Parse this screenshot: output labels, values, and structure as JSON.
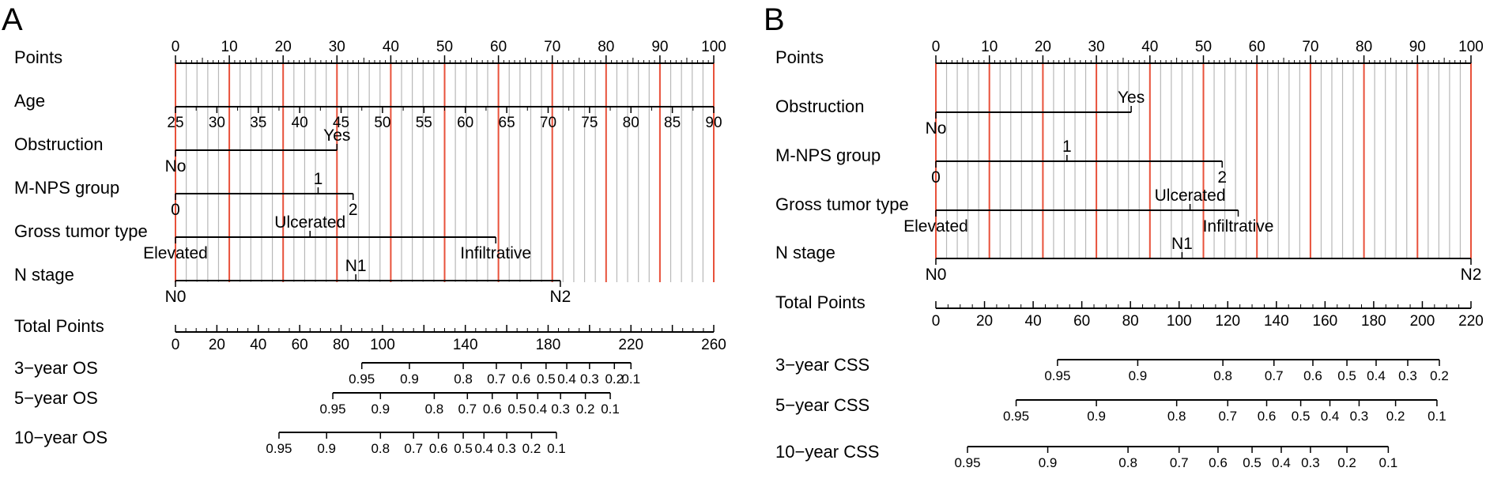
{
  "panels": [
    {
      "letter": "A",
      "rows": [
        {
          "label": "Points",
          "kind": "points"
        },
        {
          "label": "Age",
          "kind": "age",
          "ticks": [
            "25",
            "30",
            "35",
            "40",
            "45",
            "50",
            "55",
            "60",
            "65",
            "70",
            "75",
            "80",
            "85",
            "90"
          ],
          "points_range": [
            0,
            100
          ]
        },
        {
          "label": "Obstruction",
          "kind": "cat",
          "levels": [
            {
              "text": "No",
              "points": 0,
              "side": "below"
            },
            {
              "text": "Yes",
              "points": 30,
              "side": "above"
            }
          ]
        },
        {
          "label": "M-NPS group",
          "kind": "cat",
          "levels": [
            {
              "text": "0",
              "points": 0,
              "side": "below"
            },
            {
              "text": "1",
              "points": 26.5,
              "side": "above"
            },
            {
              "text": "2",
              "points": 33,
              "side": "below"
            }
          ]
        },
        {
          "label": "Gross tumor type",
          "kind": "cat",
          "levels": [
            {
              "text": "Elevated",
              "points": 0,
              "side": "below"
            },
            {
              "text": "Ulcerated",
              "points": 25,
              "side": "above"
            },
            {
              "text": "Infiltrative",
              "points": 59.5,
              "side": "below"
            }
          ]
        },
        {
          "label": "N stage",
          "kind": "cat",
          "levels": [
            {
              "text": "N0",
              "points": 0,
              "side": "below"
            },
            {
              "text": "N1",
              "points": 33.5,
              "side": "above"
            },
            {
              "text": "N2",
              "points": 71.5,
              "side": "below"
            }
          ]
        },
        {
          "label": "Total Points",
          "kind": "total",
          "max": 260,
          "labels": [
            "0",
            "20",
            "40",
            "60",
            "80",
            "100",
            "140",
            "180",
            "220",
            "260"
          ]
        },
        {
          "label": "3−year OS",
          "kind": "prob",
          "ticks": [
            {
              "t": "0.95",
              "v": 0.95,
              "tp": 90
            },
            {
              "t": "0.9",
              "v": 0.9,
              "tp": 113
            },
            {
              "t": "0.8",
              "v": 0.8,
              "tp": 139
            },
            {
              "t": "0.7",
              "v": 0.7,
              "tp": 155
            },
            {
              "t": "0.6",
              "v": 0.6,
              "tp": 167
            },
            {
              "t": "0.5",
              "v": 0.5,
              "tp": 179
            },
            {
              "t": "0.4",
              "v": 0.4,
              "tp": 189
            },
            {
              "t": "0.3",
              "v": 0.3,
              "tp": 200
            },
            {
              "t": "0.2",
              "v": 0.2,
              "tp": 212
            },
            {
              "t": "0.1",
              "v": 0.1,
              "tp": 220
            }
          ]
        },
        {
          "label": "5−year OS",
          "kind": "prob",
          "ticks": [
            {
              "t": "0.95",
              "v": 0.95,
              "tp": 76
            },
            {
              "t": "0.9",
              "v": 0.9,
              "tp": 99
            },
            {
              "t": "0.8",
              "v": 0.8,
              "tp": 125
            },
            {
              "t": "0.7",
              "v": 0.7,
              "tp": 141
            },
            {
              "t": "0.6",
              "v": 0.6,
              "tp": 153
            },
            {
              "t": "0.5",
              "v": 0.5,
              "tp": 165
            },
            {
              "t": "0.4",
              "v": 0.4,
              "tp": 175
            },
            {
              "t": "0.3",
              "v": 0.3,
              "tp": 186
            },
            {
              "t": "0.2",
              "v": 0.2,
              "tp": 198
            },
            {
              "t": "0.1",
              "v": 0.1,
              "tp": 210
            }
          ]
        },
        {
          "label": "10−year OS",
          "kind": "prob",
          "ticks": [
            {
              "t": "0.95",
              "v": 0.95,
              "tp": 50
            },
            {
              "t": "0.9",
              "v": 0.9,
              "tp": 73
            },
            {
              "t": "0.8",
              "v": 0.8,
              "tp": 99
            },
            {
              "t": "0.7",
              "v": 0.7,
              "tp": 115
            },
            {
              "t": "0.6",
              "v": 0.6,
              "tp": 127
            },
            {
              "t": "0.5",
              "v": 0.5,
              "tp": 139
            },
            {
              "t": "0.4",
              "v": 0.4,
              "tp": 149
            },
            {
              "t": "0.3",
              "v": 0.3,
              "tp": 160
            },
            {
              "t": "0.2",
              "v": 0.2,
              "tp": 172
            },
            {
              "t": "0.1",
              "v": 0.1,
              "tp": 184
            }
          ]
        }
      ]
    },
    {
      "letter": "B",
      "rows": [
        {
          "label": "Points",
          "kind": "points"
        },
        {
          "label": "Obstruction",
          "kind": "cat",
          "levels": [
            {
              "text": "No",
              "points": 0,
              "side": "below"
            },
            {
              "text": "Yes",
              "points": 36.5,
              "side": "above"
            }
          ]
        },
        {
          "label": "M-NPS group",
          "kind": "cat",
          "levels": [
            {
              "text": "0",
              "points": 0,
              "side": "below"
            },
            {
              "text": "1",
              "points": 24.5,
              "side": "above"
            },
            {
              "text": "2",
              "points": 53.5,
              "side": "below"
            }
          ]
        },
        {
          "label": "Gross tumor type",
          "kind": "cat",
          "levels": [
            {
              "text": "Elevated",
              "points": 0,
              "side": "below"
            },
            {
              "text": "Ulcerated",
              "points": 47.5,
              "side": "above"
            },
            {
              "text": "Infiltrative",
              "points": 56.5,
              "side": "below"
            }
          ]
        },
        {
          "label": "N stage",
          "kind": "cat",
          "levels": [
            {
              "text": "N0",
              "points": 0,
              "side": "below"
            },
            {
              "text": "N1",
              "points": 46,
              "side": "above"
            },
            {
              "text": "N2",
              "points": 100,
              "side": "below"
            }
          ]
        },
        {
          "label": "Total Points",
          "kind": "total",
          "max": 220,
          "labels": [
            "0",
            "20",
            "40",
            "60",
            "80",
            "100",
            "120",
            "140",
            "160",
            "180",
            "200",
            "220"
          ]
        },
        {
          "label": "3−year CSS",
          "kind": "prob",
          "ticks": [
            {
              "t": "0.95",
              "v": 0.95,
              "tp": 50
            },
            {
              "t": "0.9",
              "v": 0.9,
              "tp": 83
            },
            {
              "t": "0.8",
              "v": 0.8,
              "tp": 118
            },
            {
              "t": "0.7",
              "v": 0.7,
              "tp": 139
            },
            {
              "t": "0.6",
              "v": 0.6,
              "tp": 155
            },
            {
              "t": "0.5",
              "v": 0.5,
              "tp": 169
            },
            {
              "t": "0.4",
              "v": 0.4,
              "tp": 181
            },
            {
              "t": "0.3",
              "v": 0.3,
              "tp": 194
            },
            {
              "t": "0.2",
              "v": 0.2,
              "tp": 207
            }
          ]
        },
        {
          "label": "5−year CSS",
          "kind": "prob",
          "ticks": [
            {
              "t": "0.95",
              "v": 0.95,
              "tp": 33
            },
            {
              "t": "0.9",
              "v": 0.9,
              "tp": 66
            },
            {
              "t": "0.8",
              "v": 0.8,
              "tp": 99
            },
            {
              "t": "0.7",
              "v": 0.7,
              "tp": 120
            },
            {
              "t": "0.6",
              "v": 0.6,
              "tp": 136
            },
            {
              "t": "0.5",
              "v": 0.5,
              "tp": 150
            },
            {
              "t": "0.4",
              "v": 0.4,
              "tp": 162
            },
            {
              "t": "0.3",
              "v": 0.3,
              "tp": 174
            },
            {
              "t": "0.2",
              "v": 0.2,
              "tp": 189
            },
            {
              "t": "0.1",
              "v": 0.1,
              "tp": 206
            }
          ]
        },
        {
          "label": "10−year CSS",
          "kind": "prob",
          "ticks": [
            {
              "t": "0.95",
              "v": 0.95,
              "tp": 13
            },
            {
              "t": "0.9",
              "v": 0.9,
              "tp": 46
            },
            {
              "t": "0.8",
              "v": 0.8,
              "tp": 79
            },
            {
              "t": "0.7",
              "v": 0.7,
              "tp": 100
            },
            {
              "t": "0.6",
              "v": 0.6,
              "tp": 116
            },
            {
              "t": "0.5",
              "v": 0.5,
              "tp": 130
            },
            {
              "t": "0.4",
              "v": 0.4,
              "tp": 142
            },
            {
              "t": "0.3",
              "v": 0.3,
              "tp": 154
            },
            {
              "t": "0.2",
              "v": 0.2,
              "tp": 169
            },
            {
              "t": "0.1",
              "v": 0.1,
              "tp": 186
            }
          ]
        }
      ]
    }
  ],
  "points_axis": {
    "labels": [
      "0",
      "10",
      "20",
      "30",
      "40",
      "50",
      "60",
      "70",
      "80",
      "90",
      "100"
    ],
    "range": [
      0,
      100
    ]
  },
  "colors": {
    "red_line": "#e8513a",
    "grey_line": "#b8b8b8",
    "axis": "#000000",
    "text": "#000000"
  },
  "chart_data": [
    {
      "type": "nomogram",
      "title": "A",
      "points_scale": [
        0,
        100
      ],
      "predictors": [
        {
          "name": "Age",
          "range": [
            "25",
            "90"
          ],
          "points": [
            0,
            100
          ]
        },
        {
          "name": "Obstruction",
          "levels": {
            "No": 0,
            "Yes": 30
          }
        },
        {
          "name": "M-NPS group",
          "levels": {
            "0": 0,
            "1": 26.5,
            "2": 33
          }
        },
        {
          "name": "Gross tumor type",
          "levels": {
            "Elevated": 0,
            "Ulcerated": 25,
            "Infiltrative": 59.5
          }
        },
        {
          "name": "N stage",
          "levels": {
            "N0": 0,
            "N1": 33.5,
            "N2": 71.5
          }
        }
      ],
      "total_points_range": [
        0,
        260
      ],
      "outcomes": [
        {
          "name": "3-year OS",
          "probabilities": [
            0.95,
            0.9,
            0.8,
            0.7,
            0.6,
            0.5,
            0.4,
            0.3,
            0.2,
            0.1
          ],
          "total_points": [
            90,
            113,
            139,
            155,
            167,
            179,
            189,
            200,
            212,
            220
          ]
        },
        {
          "name": "5-year OS",
          "probabilities": [
            0.95,
            0.9,
            0.8,
            0.7,
            0.6,
            0.5,
            0.4,
            0.3,
            0.2,
            0.1
          ],
          "total_points": [
            76,
            99,
            125,
            141,
            153,
            165,
            175,
            186,
            198,
            210
          ]
        },
        {
          "name": "10-year OS",
          "probabilities": [
            0.95,
            0.9,
            0.8,
            0.7,
            0.6,
            0.5,
            0.4,
            0.3,
            0.2,
            0.1
          ],
          "total_points": [
            50,
            73,
            99,
            115,
            127,
            139,
            149,
            160,
            172,
            184
          ]
        }
      ]
    },
    {
      "type": "nomogram",
      "title": "B",
      "points_scale": [
        0,
        100
      ],
      "predictors": [
        {
          "name": "Obstruction",
          "levels": {
            "No": 0,
            "Yes": 36.5
          }
        },
        {
          "name": "M-NPS group",
          "levels": {
            "0": 0,
            "1": 24.5,
            "2": 53.5
          }
        },
        {
          "name": "Gross tumor type",
          "levels": {
            "Elevated": 0,
            "Ulcerated": 47.5,
            "Infiltrative": 56.5
          }
        },
        {
          "name": "N stage",
          "levels": {
            "N0": 0,
            "N1": 46,
            "N2": 100
          }
        }
      ],
      "total_points_range": [
        0,
        220
      ],
      "outcomes": [
        {
          "name": "3-year CSS",
          "probabilities": [
            0.95,
            0.9,
            0.8,
            0.7,
            0.6,
            0.5,
            0.4,
            0.3,
            0.2
          ],
          "total_points": [
            50,
            83,
            118,
            139,
            155,
            169,
            181,
            194,
            207
          ]
        },
        {
          "name": "5-year CSS",
          "probabilities": [
            0.95,
            0.9,
            0.8,
            0.7,
            0.6,
            0.5,
            0.4,
            0.3,
            0.2,
            0.1
          ],
          "total_points": [
            33,
            66,
            99,
            120,
            136,
            150,
            162,
            174,
            189,
            206
          ]
        },
        {
          "name": "10-year CSS",
          "probabilities": [
            0.95,
            0.9,
            0.8,
            0.7,
            0.6,
            0.5,
            0.4,
            0.3,
            0.2,
            0.1
          ],
          "total_points": [
            13,
            46,
            79,
            100,
            116,
            130,
            142,
            154,
            169,
            186
          ]
        }
      ]
    }
  ]
}
